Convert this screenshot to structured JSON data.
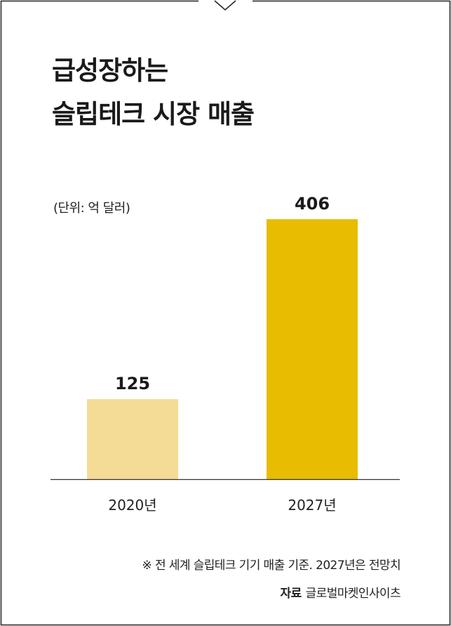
{
  "chart_data": {
    "type": "bar",
    "title": "급성장하는 슬립테크 시장 매출",
    "title_lines": [
      "급성장하는",
      "슬립테크 시장 매출"
    ],
    "unit": "(단위: 억 달러)",
    "categories": [
      "2020년",
      "2027년"
    ],
    "values": [
      125,
      406
    ],
    "value_labels": [
      "125",
      "406"
    ],
    "colors": [
      "#f5dc96",
      "#e8bc00"
    ],
    "ylim": [
      0,
      406
    ],
    "grid": false,
    "legend": "none"
  },
  "footnote": "※ 전 세계 슬립테크 기기 매출 기준. 2027년은 전망치",
  "source": {
    "label": "자료",
    "text": "글로벌마켓인사이츠"
  },
  "colors": {
    "frame": "#222222",
    "baseline": "#333333"
  }
}
